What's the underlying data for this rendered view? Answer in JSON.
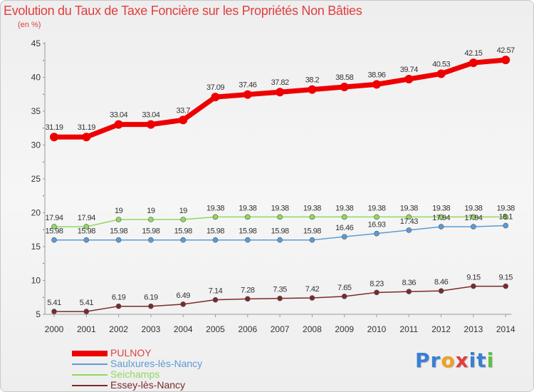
{
  "title": "Evolution du Taux de Taxe Foncière sur les Propriétés Non Bâties",
  "subtitle": "(en %)",
  "logo": {
    "text": "Proxiti",
    "letters": [
      "P",
      "r",
      "o",
      "x",
      "i",
      "t",
      "i"
    ],
    "letter_colors": [
      "#3a7fd5",
      "#3a7fd5",
      "#f0a020",
      "#e03e3e",
      "#3a7fd5",
      "#3a7fd5",
      "#60c040"
    ]
  },
  "chart_data": {
    "type": "line",
    "title": "Evolution du Taux de Taxe Foncière sur les Propriétés Non Bâties",
    "ylabel": "(en %)",
    "xlabel": "",
    "x": [
      "2000",
      "2001",
      "2002",
      "2003",
      "2004",
      "2005",
      "2006",
      "2007",
      "2008",
      "2009",
      "2010",
      "2011",
      "2012",
      "2013",
      "2014"
    ],
    "ylim": [
      5,
      45
    ],
    "yticks": [
      5,
      10,
      15,
      20,
      25,
      30,
      35,
      40,
      45
    ],
    "grid": false,
    "legend_position": "bottom-left",
    "series": [
      {
        "name": "PULNOY",
        "color": "#ee0000",
        "values": [
          31.19,
          31.19,
          33.04,
          33.04,
          33.7,
          37.09,
          37.46,
          37.82,
          38.2,
          38.58,
          38.96,
          39.74,
          40.53,
          42.15,
          42.57
        ],
        "labels": [
          "31.19",
          "31.19",
          "33.04",
          "33.04",
          "33.7",
          "37.09",
          "37.46",
          "37.82",
          "38.2",
          "38.58",
          "38.96",
          "39.74",
          "40.53",
          "42.15",
          "42.57"
        ]
      },
      {
        "name": "Saulxures-lès-Nancy",
        "color": "#5b9bd5",
        "values": [
          15.98,
          15.98,
          15.98,
          15.98,
          15.98,
          15.98,
          15.98,
          15.98,
          15.98,
          16.46,
          16.93,
          17.43,
          17.94,
          17.94,
          18.1
        ],
        "labels": [
          "15.98",
          "15.98",
          "15.98",
          "15.98",
          "15.98",
          "15.98",
          "15.98",
          "15.98",
          "15.98",
          "16.46",
          "16.93",
          "17.43",
          "17.94",
          "17.94",
          "18.1"
        ]
      },
      {
        "name": "Seichamps",
        "color": "#90d860",
        "values": [
          17.94,
          17.94,
          19,
          19,
          19,
          19.38,
          19.38,
          19.38,
          19.38,
          19.38,
          19.38,
          19.38,
          19.38,
          19.38,
          19.38
        ],
        "labels": [
          "17.94",
          "17.94",
          "19",
          "19",
          "19",
          "19.38",
          "19.38",
          "19.38",
          "19.38",
          "19.38",
          "19.38",
          "19.38",
          "19.38",
          "19.38",
          "19.38"
        ]
      },
      {
        "name": "Essey-lès-Nancy",
        "color": "#7a2a2a",
        "values": [
          5.41,
          5.41,
          6.19,
          6.19,
          6.49,
          7.14,
          7.28,
          7.35,
          7.42,
          7.65,
          8.23,
          8.36,
          8.46,
          9.15,
          9.15
        ],
        "labels": [
          "5.41",
          "5.41",
          "6.19",
          "6.19",
          "6.49",
          "7.14",
          "7.28",
          "7.35",
          "7.42",
          "7.65",
          "8.23",
          "8.36",
          "8.46",
          "9.15",
          "9.15"
        ]
      }
    ]
  }
}
